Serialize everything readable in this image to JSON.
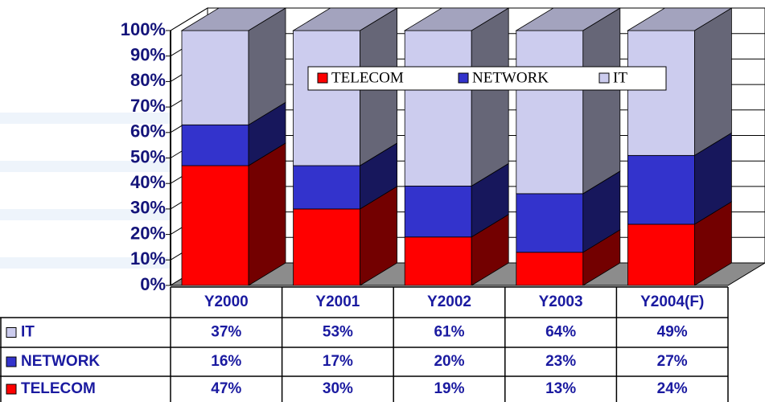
{
  "chart_data": {
    "type": "bar",
    "stacked": true,
    "categories": [
      "Y2000",
      "Y2001",
      "Y2002",
      "Y2003",
      "Y2004(F)"
    ],
    "series": [
      {
        "name": "TELECOM",
        "color": "#ff0000",
        "values": [
          47,
          30,
          19,
          13,
          24
        ],
        "value_labels": [
          "47%",
          "30%",
          "19%",
          "13%",
          "24%"
        ]
      },
      {
        "name": "NETWORK",
        "color": "#3333cc",
        "values": [
          16,
          17,
          20,
          23,
          27
        ],
        "value_labels": [
          "16%",
          "17%",
          "20%",
          "23%",
          "27%"
        ]
      },
      {
        "name": "IT",
        "color": "#ccccee",
        "values": [
          37,
          53,
          61,
          64,
          49
        ],
        "value_labels": [
          "37%",
          "53%",
          "61%",
          "64%",
          "49%"
        ]
      }
    ],
    "ylim": [
      0,
      100
    ],
    "yticks": [
      {
        "value": 0,
        "label": "0%"
      },
      {
        "value": 10,
        "label": "10%"
      },
      {
        "value": 20,
        "label": "20%"
      },
      {
        "value": 30,
        "label": "30%"
      },
      {
        "value": 40,
        "label": "40%"
      },
      {
        "value": 50,
        "label": "50%"
      },
      {
        "value": 60,
        "label": "60%"
      },
      {
        "value": 70,
        "label": "70%"
      },
      {
        "value": 80,
        "label": "80%"
      },
      {
        "value": 90,
        "label": "90%"
      },
      {
        "value": 100,
        "label": "100%"
      }
    ],
    "grid": true
  }
}
